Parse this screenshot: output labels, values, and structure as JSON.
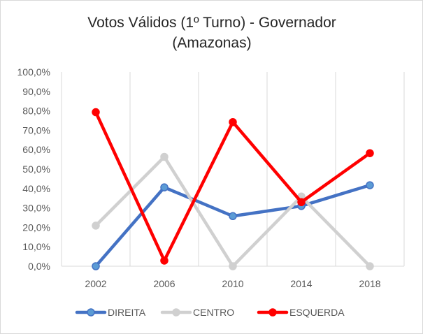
{
  "chart_data": {
    "type": "line",
    "title_lines": [
      "Votos Válidos (1º Turno) - Governador",
      "(Amazonas)"
    ],
    "categories": [
      "2002",
      "2006",
      "2010",
      "2014",
      "2018"
    ],
    "ylim": [
      0,
      100
    ],
    "yticks": [
      "0,0%",
      "10,0%",
      "20,0%",
      "30,0%",
      "40,0%",
      "50,0%",
      "60,0%",
      "70,0%",
      "80,0%",
      "90,0%",
      "100,0%"
    ],
    "grid": "vertical",
    "legend_position": "bottom",
    "series": [
      {
        "name": "DIREITA",
        "color": "#4472c4",
        "marker_fill": "#5b9bd5",
        "values": [
          0.0,
          40.6,
          25.8,
          31.0,
          41.7
        ]
      },
      {
        "name": "CENTRO",
        "color": "#d0d0d0",
        "marker_fill": "#d0d0d0",
        "values": [
          20.9,
          56.3,
          0.0,
          35.9,
          0.0
        ]
      },
      {
        "name": "ESQUERDA",
        "color": "#ff0000",
        "marker_fill": "#ff0000",
        "values": [
          79.3,
          2.9,
          74.2,
          33.0,
          58.2
        ]
      }
    ]
  }
}
